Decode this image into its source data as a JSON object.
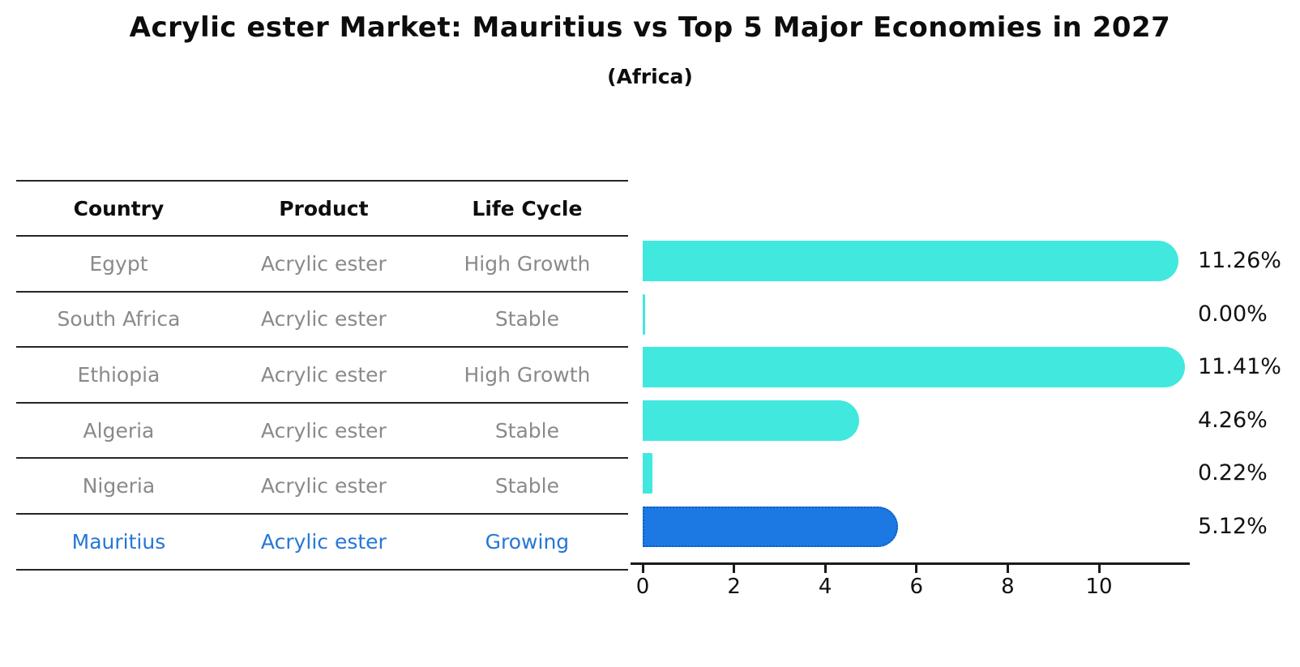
{
  "title": "Acrylic ester Market: Mauritius vs Top 5 Major Economies in 2027",
  "subtitle": "(Africa)",
  "table": {
    "headers": {
      "country": "Country",
      "product": "Product",
      "life_cycle": "Life Cycle"
    },
    "rows": [
      {
        "country": "Egypt",
        "product": "Acrylic ester",
        "life_cycle": "High Growth",
        "highlight": false
      },
      {
        "country": "South Africa",
        "product": "Acrylic ester",
        "life_cycle": "Stable",
        "highlight": false
      },
      {
        "country": "Ethiopia",
        "product": "Acrylic ester",
        "life_cycle": "High Growth",
        "highlight": false
      },
      {
        "country": "Algeria",
        "product": "Acrylic ester",
        "life_cycle": "Stable",
        "highlight": false
      },
      {
        "country": "Nigeria",
        "product": "Acrylic ester",
        "life_cycle": "Stable",
        "highlight": false
      },
      {
        "country": "Mauritius",
        "product": "Acrylic ester",
        "life_cycle": "Growing",
        "highlight": true
      }
    ]
  },
  "chart_data": {
    "type": "bar",
    "orientation": "horizontal",
    "title": "Acrylic ester Market: Mauritius vs Top 5 Major Economies in 2027 (Africa)",
    "categories": [
      "Egypt",
      "South Africa",
      "Ethiopia",
      "Algeria",
      "Nigeria",
      "Mauritius"
    ],
    "values": [
      11.26,
      0.0,
      11.41,
      4.26,
      0.22,
      5.12
    ],
    "value_labels": [
      "11.26%",
      "0.00%",
      "11.41%",
      "4.26%",
      "0.22%",
      "5.12%"
    ],
    "xticks": [
      0,
      2,
      4,
      6,
      8,
      10
    ],
    "xlim": [
      0,
      12
    ],
    "grid": false,
    "legend": false,
    "bar_color": "#40e8de",
    "highlight_index": 5,
    "highlight_color": "#1c79e3",
    "highlight_border_color": "#0f5cc0",
    "highlight_border_style": "dotted"
  },
  "colors": {
    "row_text": "#8a8a8a",
    "highlight_text": "#2577d6",
    "header_text": "#0d0d0d",
    "value_text": "#111111",
    "axis": "#1a1a1a"
  }
}
